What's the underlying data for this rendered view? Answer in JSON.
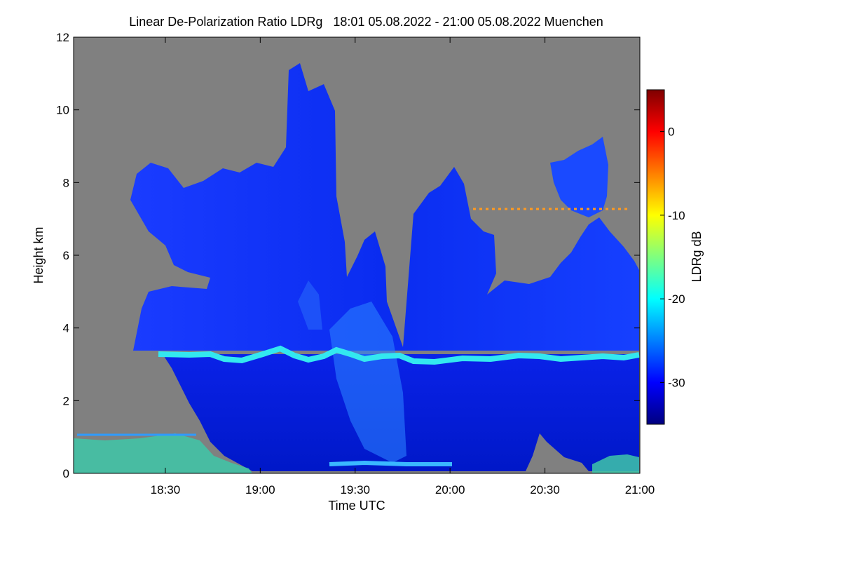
{
  "chart_data": {
    "type": "heatmap",
    "title": "Linear De-Polarization Ratio LDRg   18:01 05.08.2022 - 21:00 05.08.2022 Muenchen",
    "xlabel": "Time UTC",
    "ylabel": "Height km",
    "xlim": [
      "18:01",
      "21:00"
    ],
    "ylim": [
      0,
      12
    ],
    "x_ticks": [
      "18:30",
      "19:00",
      "19:30",
      "20:00",
      "20:30",
      "21:00"
    ],
    "y_ticks": [
      "0",
      "2",
      "4",
      "6",
      "8",
      "10",
      "12"
    ],
    "no_data_color": "#808080",
    "colorbar": {
      "label": "LDRg dB",
      "range": [
        -35,
        5
      ],
      "ticks": [
        "0",
        "-10",
        "-20",
        "-30"
      ],
      "colormap": [
        "#00007f",
        "#0000ff",
        "#007fff",
        "#00ffff",
        "#7fff7f",
        "#ffff00",
        "#ff7f00",
        "#ff0000",
        "#7f0000"
      ]
    },
    "features": {
      "melting_layer_height_km": 3.3,
      "cloud_base_height_km": 0.1,
      "max_cloud_top_km": 11.4
    }
  }
}
